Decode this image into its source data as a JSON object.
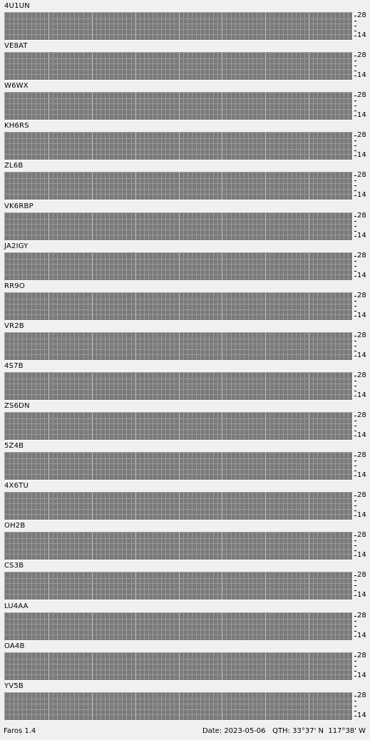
{
  "colors": {
    "grid_bg": "#7a7a7a",
    "grid_line": "#9a9a9a",
    "grid_major": "#c8c8c8",
    "cyan": "#80ffff",
    "light_green": "#a0ff80",
    "blue": "#7fa7ff",
    "purple": "#8080ff",
    "gray": "#a8a8a8"
  },
  "scale_labels": {
    "top": "28",
    "bottom": "14"
  },
  "stations": [
    {
      "name": "4U1UN"
    },
    {
      "name": "VE8AT"
    },
    {
      "name": "W6WX"
    },
    {
      "name": "KH6RS"
    },
    {
      "name": "ZL6B"
    },
    {
      "name": "VK6RBP"
    },
    {
      "name": "JA2IGY"
    },
    {
      "name": "RR9O"
    },
    {
      "name": "VR2B"
    },
    {
      "name": "4S7B"
    },
    {
      "name": "ZS6DN"
    },
    {
      "name": "5Z4B"
    },
    {
      "name": "4X6TU"
    },
    {
      "name": "OH2B"
    },
    {
      "name": "CS3B"
    },
    {
      "name": "LU4AA"
    },
    {
      "name": "OA4B"
    },
    {
      "name": "YV5B"
    }
  ],
  "status": {
    "app": "Faros 1.4",
    "date_label": "Date:",
    "date": "2023-05-06",
    "qth_label": "QTH:",
    "lat": "33°37' N",
    "lon": "117°38' W"
  }
}
